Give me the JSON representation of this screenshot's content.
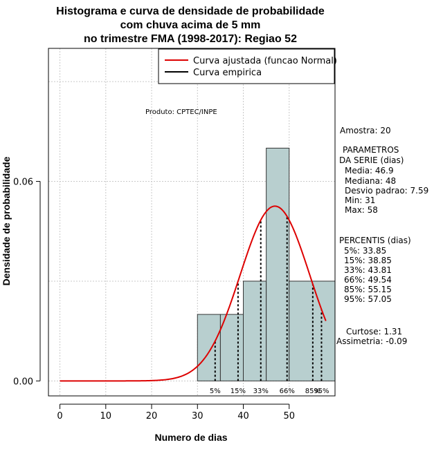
{
  "chart_data": {
    "type": "bar",
    "title_lines": [
      "Histograma e curva de densidade de probabilidade",
      "com chuva acima de 5 mm",
      "no trimestre FMA (1998-2017): Regiao 52"
    ],
    "xlabel": "Numero de dias",
    "ylabel": "Densidade de probabilidade",
    "xlim": [
      -2.5,
      60
    ],
    "ylim": [
      -0.0045,
      0.1
    ],
    "x_ticks": [
      0,
      10,
      20,
      30,
      40,
      50
    ],
    "x_tick_labels": [
      "0",
      "10",
      "20",
      "30",
      "40",
      "50"
    ],
    "y_ticks": [
      0.0,
      0.06
    ],
    "y_tick_labels": [
      "0.00",
      "0.06"
    ],
    "grid": true,
    "histogram": {
      "bins": [
        {
          "start": 30,
          "end": 35,
          "density": 0.02
        },
        {
          "start": 35,
          "end": 40,
          "density": 0.02
        },
        {
          "start": 40,
          "end": 45,
          "density": 0.03
        },
        {
          "start": 45,
          "end": 50,
          "density": 0.07
        },
        {
          "start": 50,
          "end": 60,
          "density": 0.03
        }
      ],
      "fill": "#b8cfcf"
    },
    "fitted_curve": {
      "name": "Curva ajustada (funcao Normal)",
      "distribution": "normal",
      "mean": 46.9,
      "sd": 7.59,
      "x_range": [
        0,
        58
      ],
      "color": "#dd0000"
    },
    "empirical_curve": {
      "name": "Curva empirica",
      "color": "#000000"
    },
    "legend_position": "top-right",
    "percentile_markers": [
      {
        "label": "5%",
        "value": 33.85
      },
      {
        "label": "15%",
        "value": 38.85
      },
      {
        "label": "33%",
        "value": 43.81
      },
      {
        "label": "66%",
        "value": 49.54
      },
      {
        "label": "85%",
        "value": 55.15
      },
      {
        "label": "95%",
        "value": 57.05
      }
    ],
    "annotation": "Produto: CPTEC/INPE"
  },
  "side_panel": {
    "amostra": "Amostra: 20",
    "params_title_1": "PARAMETROS",
    "params_title_2": "DA SERIE (dias)",
    "media": "Media: 46.9",
    "mediana": "Mediana: 48",
    "desvio": "Desvio padrao: 7.59",
    "min": "Min: 31",
    "max": "Max: 58",
    "percentis_title": "PERCENTIS (dias)",
    "p5": "5%: 33.85",
    "p15": "15%: 38.85",
    "p33": "33%: 43.81",
    "p66": "66%: 49.54",
    "p85": "85%: 55.15",
    "p95": "95%: 57.05",
    "curtose": "Curtose: 1.31",
    "assimetria": "Assimetria: -0.09"
  }
}
